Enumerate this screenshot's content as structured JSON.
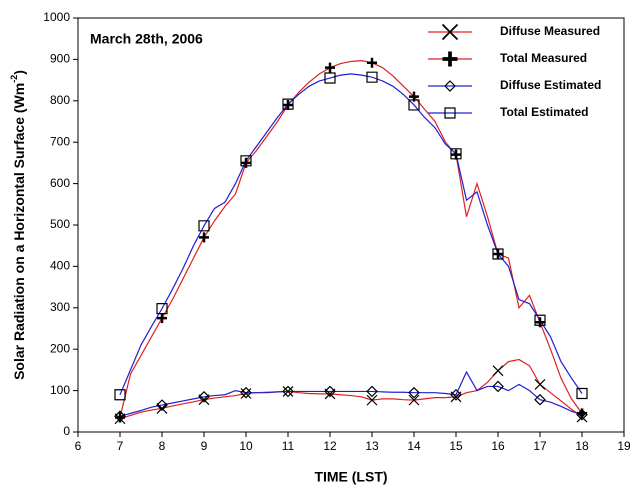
{
  "chart_data": {
    "type": "line",
    "annotation": "March 28th, 2006",
    "xlabel": "TIME (LST)",
    "ylabel": {
      "text": "Solar Radiation on a Horizontal Surface (Wm",
      "sup": "-2",
      "end": ")"
    },
    "xlim": [
      6,
      19
    ],
    "xticks": [
      6,
      7,
      8,
      9,
      10,
      11,
      12,
      13,
      14,
      15,
      16,
      17,
      18,
      19
    ],
    "ylim": [
      0,
      1000
    ],
    "yticks": [
      0,
      100,
      200,
      300,
      400,
      500,
      600,
      700,
      800,
      900,
      1000
    ],
    "legend": "upper right",
    "x": [
      7,
      7.25,
      7.5,
      7.75,
      8,
      8.25,
      8.5,
      8.75,
      9,
      9.25,
      9.5,
      9.75,
      10,
      10.25,
      10.5,
      10.75,
      11,
      11.25,
      11.5,
      11.75,
      12,
      12.25,
      12.5,
      12.75,
      13,
      13.25,
      13.5,
      13.75,
      14,
      14.25,
      14.5,
      14.75,
      15,
      15.25,
      15.5,
      15.75,
      16,
      16.25,
      16.5,
      16.75,
      17,
      17.25,
      17.5,
      17.75,
      18
    ],
    "series": [
      {
        "name": "Diffuse Measured",
        "color": "#e02020",
        "marker": "x",
        "marker_color": "#000000",
        "values": [
          32,
          40,
          48,
          53,
          57,
          63,
          68,
          73,
          78,
          82,
          85,
          88,
          93,
          95,
          96,
          97,
          98,
          95,
          93,
          92,
          92,
          90,
          88,
          85,
          77,
          80,
          80,
          78,
          77,
          80,
          83,
          83,
          85,
          95,
          100,
          120,
          148,
          170,
          175,
          160,
          115,
          95,
          75,
          55,
          36
        ]
      },
      {
        "name": "Total Measured",
        "color": "#e02020",
        "marker": "plus",
        "marker_color": "#000000",
        "values": [
          35,
          140,
          185,
          230,
          275,
          320,
          370,
          420,
          470,
          510,
          545,
          575,
          650,
          680,
          715,
          750,
          790,
          820,
          845,
          865,
          880,
          890,
          895,
          897,
          892,
          880,
          860,
          835,
          810,
          780,
          750,
          700,
          670,
          520,
          600,
          520,
          430,
          420,
          300,
          330,
          265,
          200,
          130,
          80,
          45
        ]
      },
      {
        "name": "Diffuse Estimated",
        "color": "#2020d0",
        "marker": "diamond",
        "marker_color": "#000000",
        "values": [
          38,
          45,
          52,
          60,
          65,
          70,
          75,
          80,
          85,
          88,
          90,
          100,
          95,
          95,
          95,
          97,
          98,
          98,
          98,
          98,
          98,
          98,
          98,
          98,
          98,
          97,
          96,
          96,
          95,
          95,
          95,
          93,
          90,
          145,
          100,
          110,
          110,
          100,
          115,
          100,
          78,
          72,
          62,
          50,
          42
        ]
      },
      {
        "name": "Total Estimated",
        "color": "#2020d0",
        "marker": "square",
        "marker_color": "#000000",
        "values": [
          90,
          150,
          210,
          255,
          298,
          345,
          395,
          450,
          498,
          540,
          555,
          600,
          655,
          690,
          725,
          760,
          792,
          815,
          835,
          848,
          855,
          862,
          865,
          862,
          857,
          848,
          835,
          815,
          790,
          760,
          735,
          695,
          672,
          560,
          580,
          500,
          430,
          400,
          320,
          310,
          270,
          230,
          170,
          130,
          93
        ]
      }
    ]
  }
}
